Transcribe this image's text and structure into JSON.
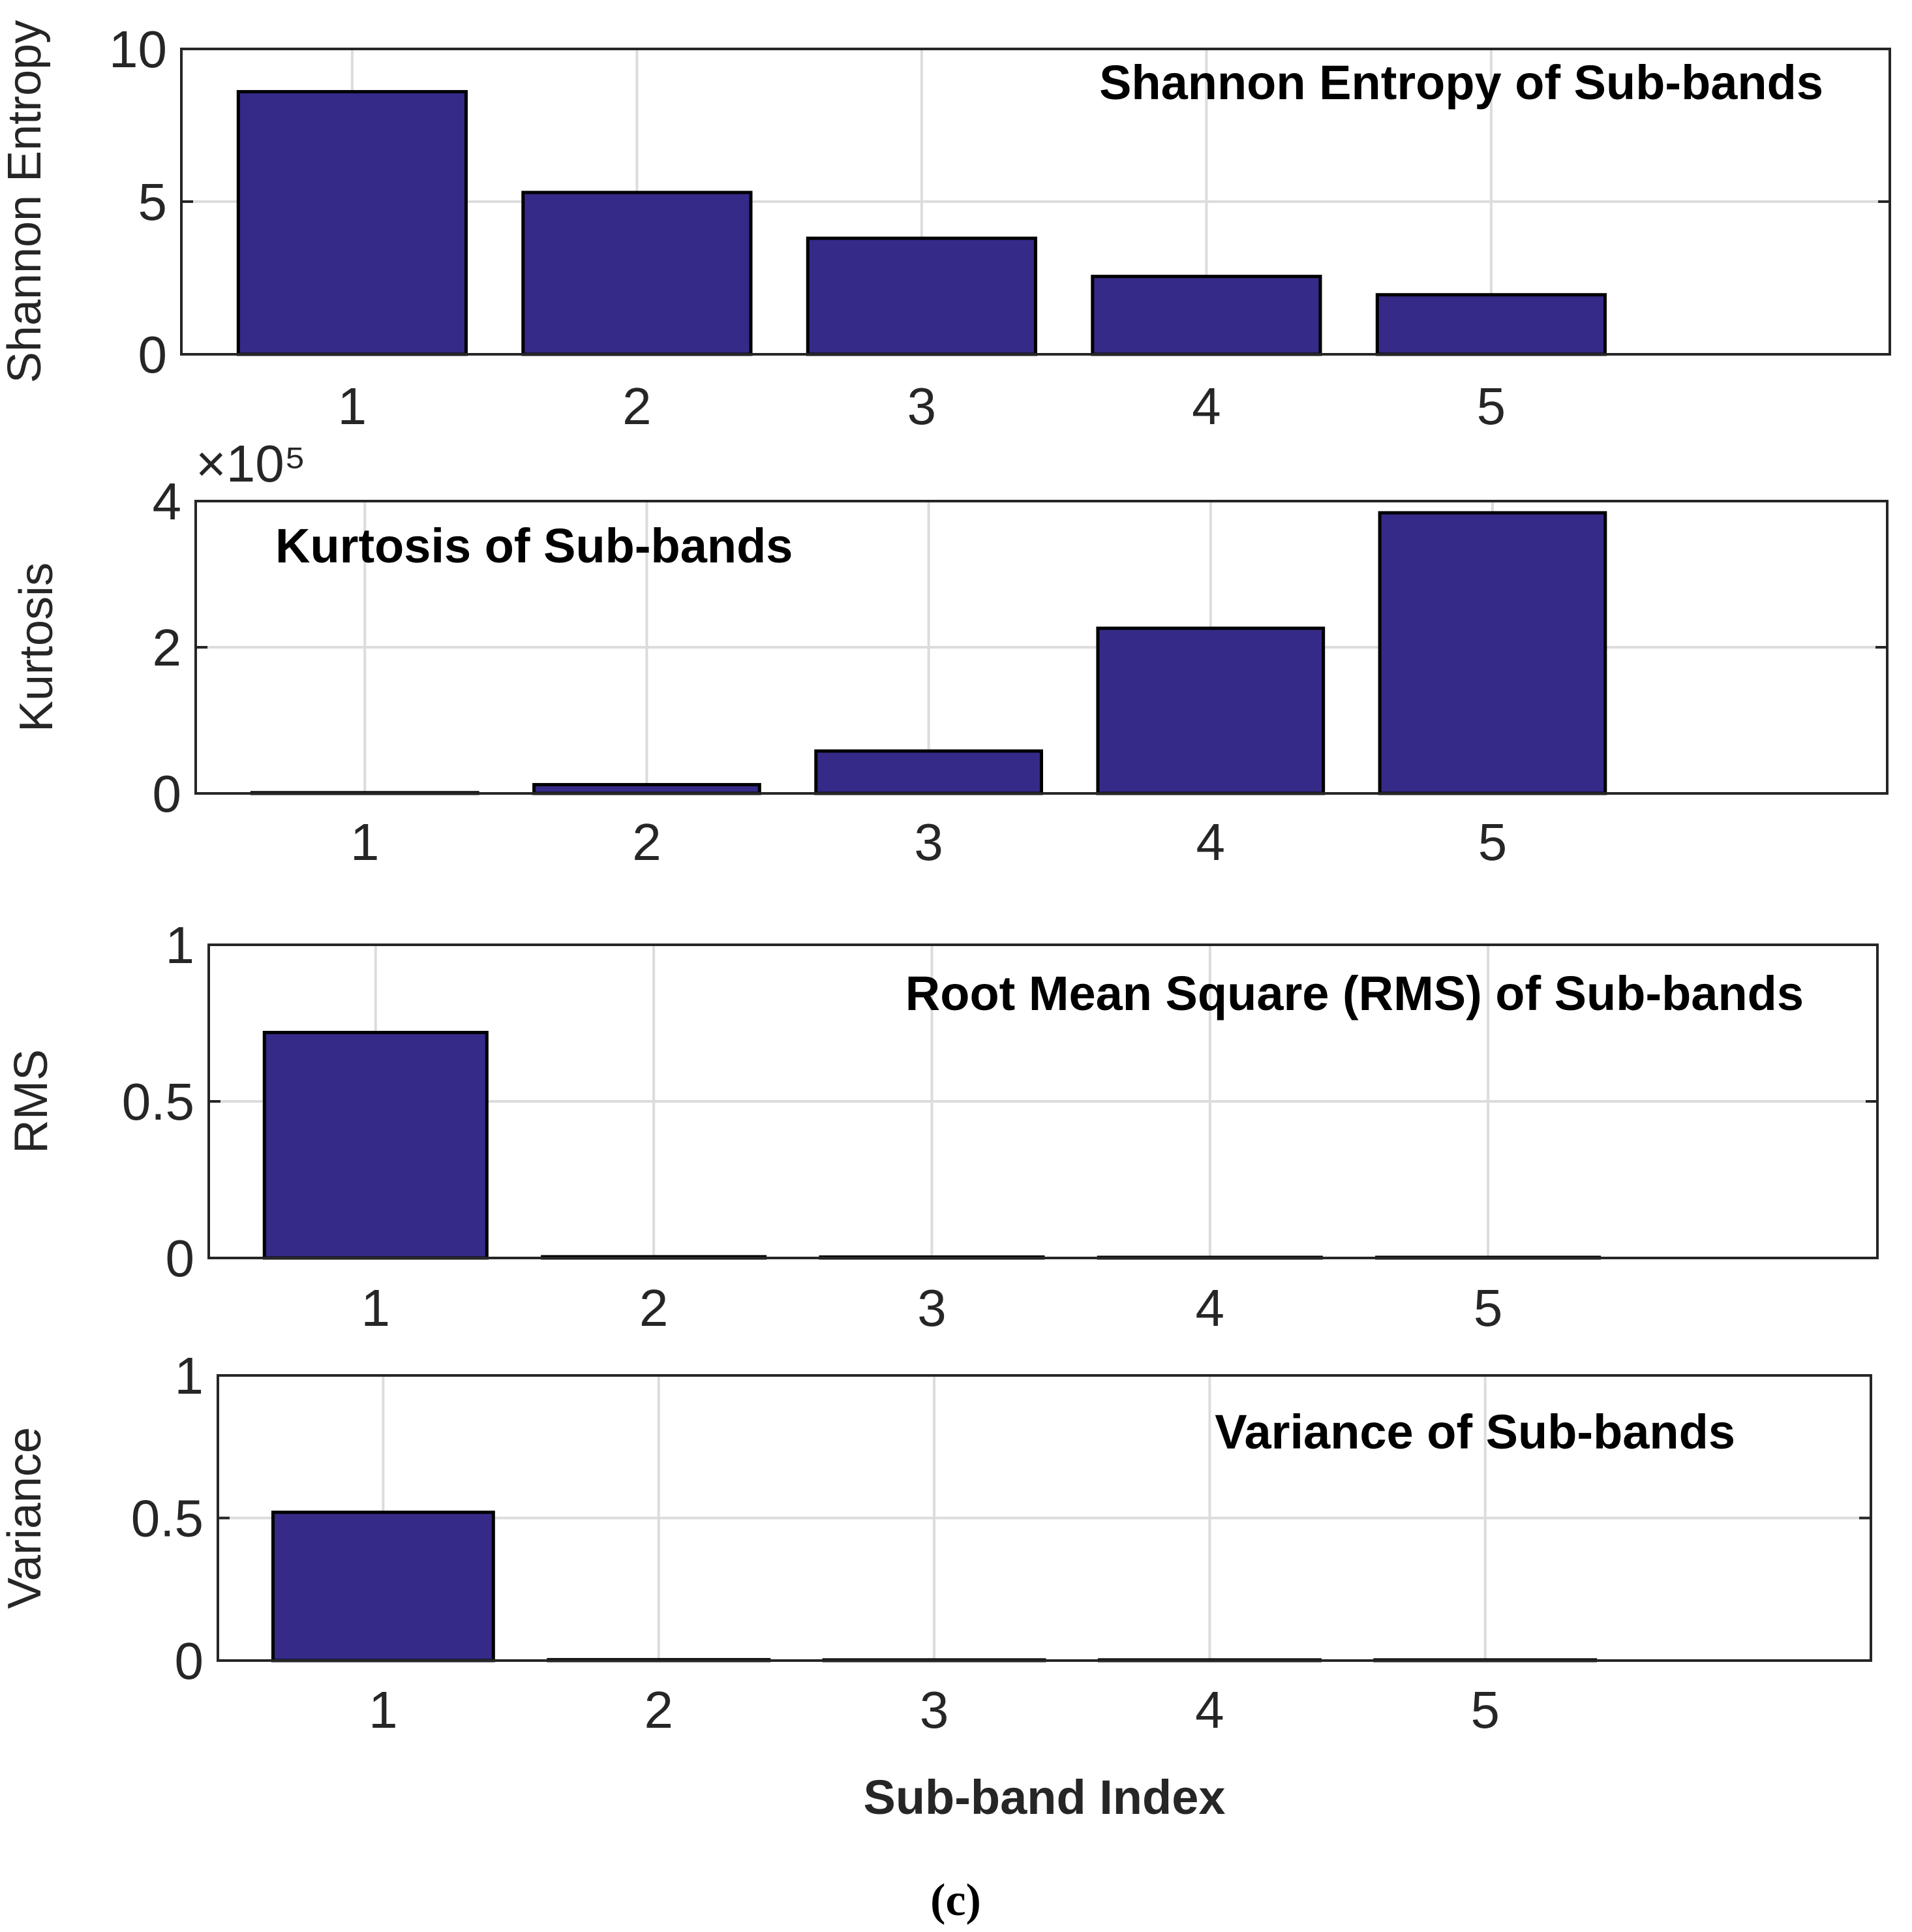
{
  "colors": {
    "bar": "#352a87",
    "bar_edge": "#000000",
    "axis": "#262626",
    "grid": "#dcdcdc"
  },
  "chart_data": [
    {
      "type": "bar",
      "title": "Shannon Entropy of Sub-bands",
      "xlabel": "",
      "ylabel": "Shannon Entropy",
      "categories": [
        "1",
        "2",
        "3",
        "4",
        "5"
      ],
      "values": [
        8.6,
        5.3,
        3.8,
        2.55,
        1.95
      ],
      "ylim": [
        0,
        10
      ],
      "yticks": [
        0,
        5,
        10
      ],
      "ytick_labels": [
        "0",
        "5",
        "10"
      ],
      "exponent_label": "",
      "grid": true
    },
    {
      "type": "bar",
      "title": "Kurtosis of Sub-bands",
      "xlabel": "",
      "ylabel": "Kurtosis",
      "categories": [
        "1",
        "2",
        "3",
        "4",
        "5"
      ],
      "values": [
        1000,
        12000,
        58000,
        226000,
        384000
      ],
      "ylim": [
        0,
        400000
      ],
      "yticks": [
        0,
        200000,
        400000
      ],
      "ytick_labels": [
        "0",
        "2",
        "4"
      ],
      "exponent_label": "×10⁵",
      "grid": true
    },
    {
      "type": "bar",
      "title": "Root Mean Square (RMS) of Sub-bands",
      "xlabel": "",
      "ylabel": "RMS",
      "categories": [
        "1",
        "2",
        "3",
        "4",
        "5"
      ],
      "values": [
        0.72,
        0.004,
        0.003,
        0.002,
        0.002
      ],
      "ylim": [
        0,
        1
      ],
      "yticks": [
        0,
        0.5,
        1
      ],
      "ytick_labels": [
        "0",
        "0.5",
        "1"
      ],
      "exponent_label": "",
      "grid": true
    },
    {
      "type": "bar",
      "title": "Variance of Sub-bands",
      "xlabel": "Sub-band Index",
      "ylabel": "Variance",
      "categories": [
        "1",
        "2",
        "3",
        "4",
        "5"
      ],
      "values": [
        0.52,
        0.003,
        0.002,
        0.002,
        0.001
      ],
      "ylim": [
        0,
        1
      ],
      "yticks": [
        0,
        0.5,
        1
      ],
      "ytick_labels": [
        "0",
        "0.5",
        "1"
      ],
      "exponent_label": "",
      "grid": true
    }
  ],
  "caption": "(c)"
}
